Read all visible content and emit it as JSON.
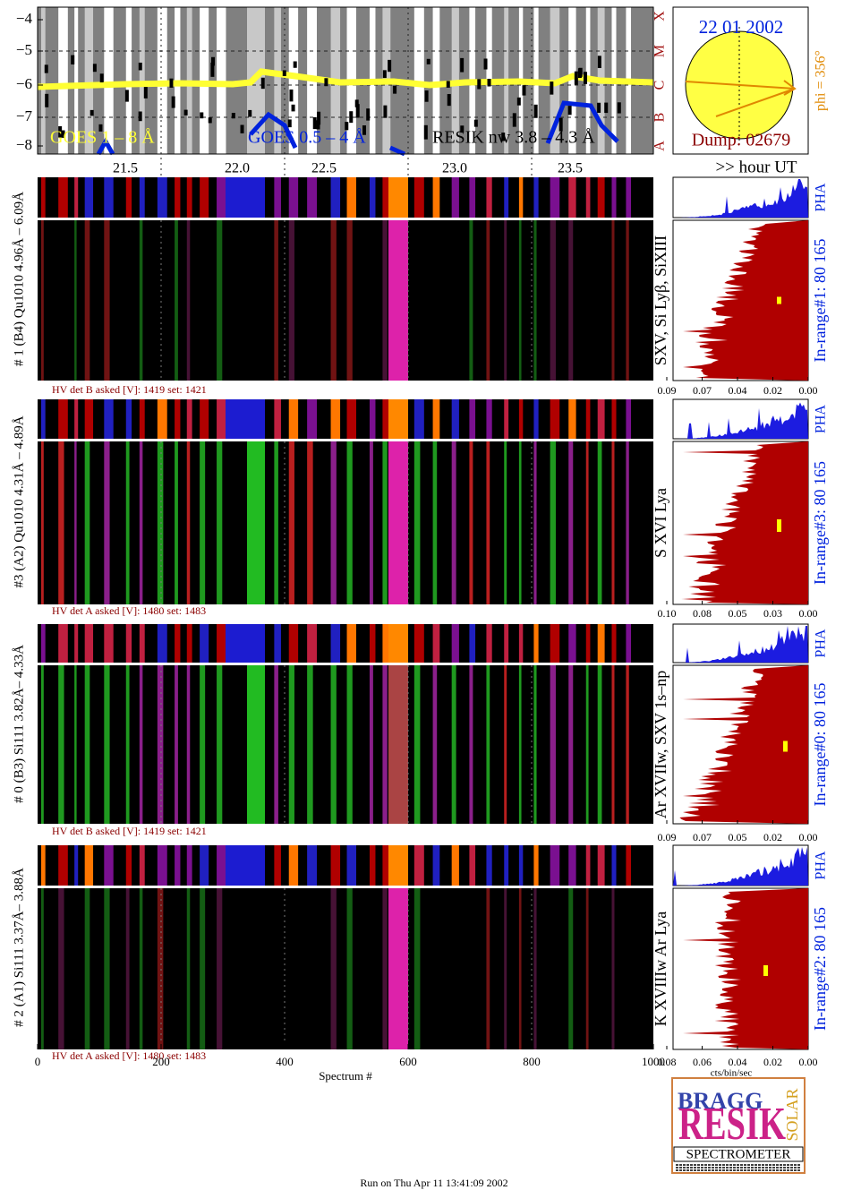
{
  "goes": {
    "yticks": [
      "−4",
      "−5",
      "−6",
      "−7",
      "−8"
    ],
    "classes": [
      "A",
      "B",
      "C",
      "M",
      "X"
    ],
    "labels": [
      "GOES 1 – 8 Å",
      "GOES 0.5 – 4 Å",
      "RESIK nw 3.8 – 4.3 Å"
    ],
    "hours": [
      "21.5",
      "22.0",
      "22.5",
      "23.0",
      "23.5"
    ],
    "hour_unit": ">> hour UT"
  },
  "sun": {
    "date": "22 01 2002",
    "dump": "Dump: 02679",
    "phi": "phi = 356°"
  },
  "detectors": [
    {
      "label": "# 1 (B4) Qu1010 4.96Å – 6.09Å",
      "hv": "HV det B asked [V]:  1419 set:  1421",
      "lines": "SXV, Si Lyβ, SiXIII",
      "range": "In-range#1:   80 165",
      "pha": "PHA",
      "ticks": [
        "0.09",
        "0.07",
        "0.04",
        "0.02",
        "0.00"
      ]
    },
    {
      "label": "#3 (A2) Qu1010  4.31Å – 4.89Å",
      "hv": "HV det A asked [V]:  1480 set:  1483",
      "lines": "S XVI Lya",
      "range": "In-range#3:   80 165",
      "pha": "PHA",
      "ticks": [
        "0.10",
        "0.08",
        "0.05",
        "0.03",
        "0.00"
      ]
    },
    {
      "label": "# 0 (B3) Si111  3.82Å– 4.33Å",
      "hv": "HV det B asked [V]:  1419 set:  1421",
      "lines": "Ar XVIIw,  SXV 1s–np",
      "range": "In-range#0:   80 165",
      "pha": "PHA",
      "ticks": [
        "0.09",
        "0.07",
        "0.05",
        "0.02",
        "0.00"
      ]
    },
    {
      "label": "# 2 (A1) Si111  3.37Å– 3.88Å",
      "hv": "HV det A asked [V]:  1480 set:  1483",
      "lines": "K XVIIIw  Ar Lya",
      "range": "In-range#2:   80 165",
      "pha": "PHA",
      "ticks": [
        "0.08",
        "0.06",
        "0.04",
        "0.02",
        "0.00"
      ]
    }
  ],
  "x_axis": {
    "ticks": [
      "0",
      "200",
      "400",
      "600",
      "800",
      "1000"
    ],
    "title": "Spectrum #"
  },
  "hist_axis": "cts/bin/sec",
  "logo": {
    "words": [
      "BRAGG",
      "RESIK",
      "SOLAR"
    ],
    "name": "SPECTROMETER"
  },
  "footer": "Run on Thu Apr 11 13:41:09 2002"
}
